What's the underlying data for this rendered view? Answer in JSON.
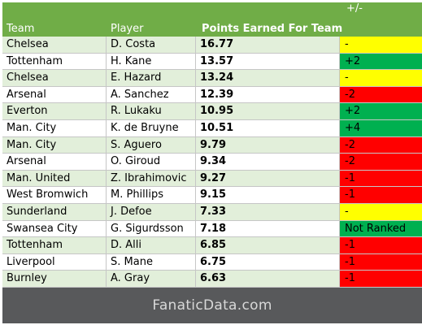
{
  "columns": {
    "team": "Team",
    "player": "Player",
    "points": "Points Earned For Team",
    "change": "+/-"
  },
  "change_colors": {
    "same": "#ffff00",
    "up": "#00b050",
    "down": "#ff0000"
  },
  "rows": [
    {
      "team": "Chelsea",
      "player": "D. Costa",
      "points": "16.77",
      "change": "-",
      "trend": "same"
    },
    {
      "team": "Tottenham",
      "player": "H. Kane",
      "points": "13.57",
      "change": "+2",
      "trend": "up"
    },
    {
      "team": "Chelsea",
      "player": "E. Hazard",
      "points": "13.24",
      "change": "-",
      "trend": "same"
    },
    {
      "team": "Arsenal",
      "player": "A. Sanchez",
      "points": "12.39",
      "change": "-2",
      "trend": "down"
    },
    {
      "team": "Everton",
      "player": "R. Lukaku",
      "points": "10.95",
      "change": "+2",
      "trend": "up"
    },
    {
      "team": "Man. City",
      "player": "K. de Bruyne",
      "points": "10.51",
      "change": "+4",
      "trend": "up"
    },
    {
      "team": "Man. City",
      "player": "S. Aguero",
      "points": "9.79",
      "change": "-2",
      "trend": "down"
    },
    {
      "team": "Arsenal",
      "player": "O. Giroud",
      "points": "9.34",
      "change": "-2",
      "trend": "down"
    },
    {
      "team": "Man. United",
      "player": "Z. Ibrahimovic",
      "points": "9.27",
      "change": "-1",
      "trend": "down"
    },
    {
      "team": "West Bromwich",
      "player": "M. Phillips",
      "points": "9.15",
      "change": "-1",
      "trend": "down"
    },
    {
      "team": "Sunderland",
      "player": "J. Defoe",
      "points": "7.33",
      "change": "-",
      "trend": "same"
    },
    {
      "team": "Swansea City",
      "player": "G. Sigurdsson",
      "points": "7.18",
      "change": "Not Ranked",
      "trend": "up"
    },
    {
      "team": "Tottenham",
      "player": "D. Alli",
      "points": "6.85",
      "change": "-1",
      "trend": "down"
    },
    {
      "team": "Liverpool",
      "player": "S. Mane",
      "points": "6.75",
      "change": "-1",
      "trend": "down"
    },
    {
      "team": "Burnley",
      "player": "A. Gray",
      "points": "6.63",
      "change": "-1",
      "trend": "down"
    }
  ],
  "footer": {
    "brand": "FanaticData.com"
  }
}
